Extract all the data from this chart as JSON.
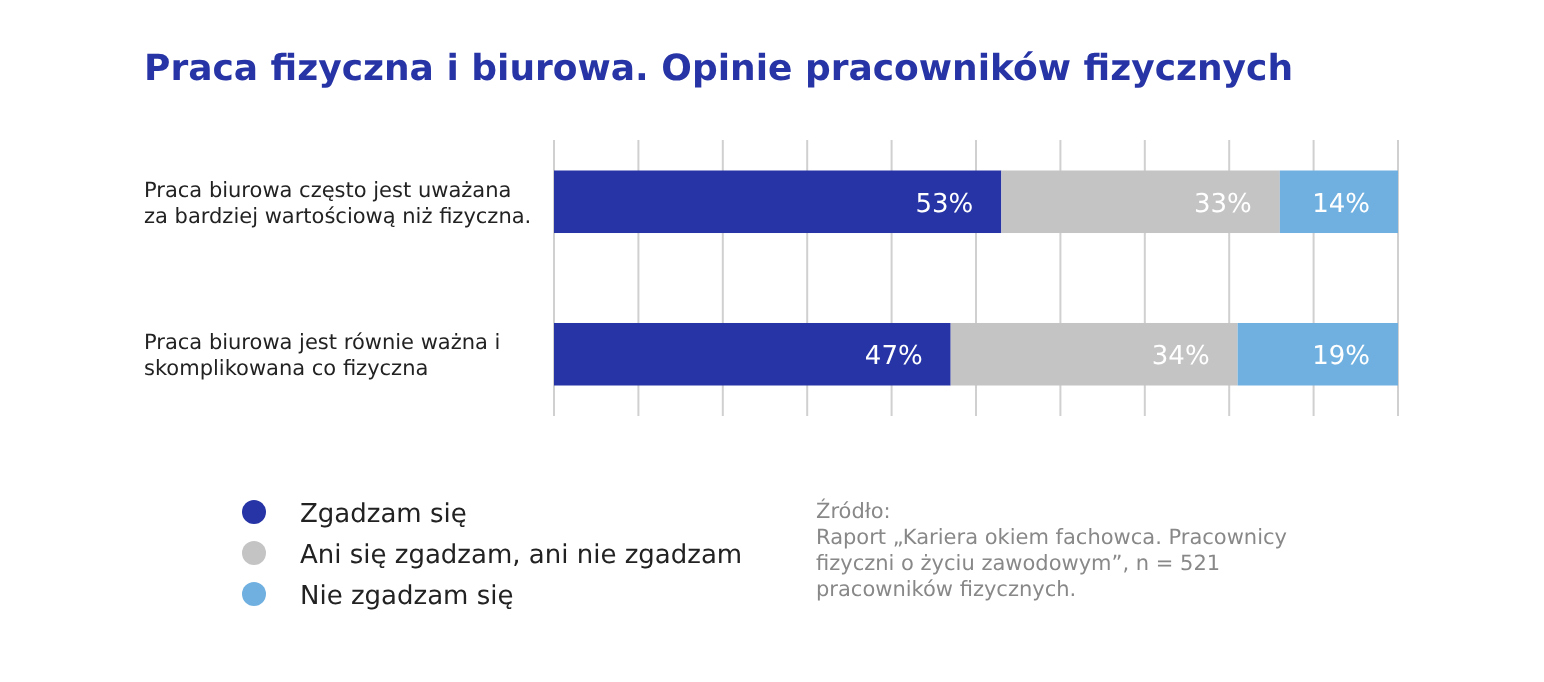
{
  "chart_data": {
    "type": "bar",
    "orientation": "horizontal",
    "stacked": true,
    "title": "Praca fizyczna i biurowa. Opinie pracowników fizycznych",
    "categories": [
      "Praca biurowa często jest uważana za bardziej wartościową niż fizyczna.",
      "Praca biurowa jest równie ważna i skomplikowana co fizyczna"
    ],
    "series": [
      {
        "name": "Zgadzam się",
        "color": "#2634a6",
        "values": [
          53,
          47
        ],
        "value_labels": [
          "53%",
          "47%"
        ]
      },
      {
        "name": "Ani się zgadzam, ani nie zgadzam",
        "color": "#c4c4c4",
        "values": [
          33,
          34
        ],
        "value_labels": [
          "33%",
          "34%"
        ]
      },
      {
        "name": "Nie zgadzam się",
        "color": "#6fb0e0",
        "values": [
          14,
          19
        ],
        "value_labels": [
          "14%",
          "19%"
        ]
      }
    ],
    "grid": "x",
    "tick_labels": "y",
    "legend": "bottom left",
    "annotations": [
      "Źródło:\nRaport „Kariera okiem fachowca. Pracownicy fizyczni o życiu zawodowym”, n = 521 pracowników fizycznych."
    ]
  }
}
